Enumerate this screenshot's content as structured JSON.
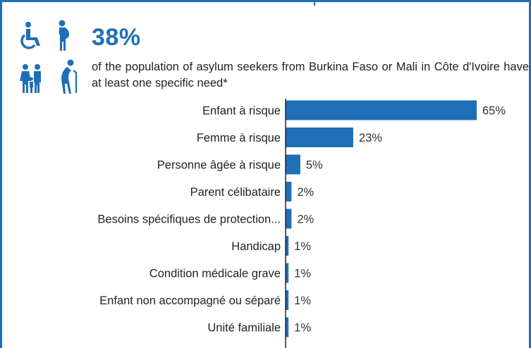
{
  "colors": {
    "accent": "#1f6fb7",
    "text": "#222222",
    "value_text": "#333333"
  },
  "icons": [
    "wheelchair-icon",
    "pregnant-woman-icon",
    "family-icon",
    "elderly-person-icon"
  ],
  "stat": {
    "value": "38%",
    "description": "of the population of asylum seekers from Burkina Faso or Mali in Côte d'Ivoire have at least one specific need*"
  },
  "chart_data": {
    "type": "bar",
    "orientation": "horizontal",
    "categories": [
      "Enfant à risque",
      "Femme à risque",
      "Personne âgée à risque",
      "Parent célibataire",
      "Besoins spécifiques de protection...",
      "Handicap",
      "Condition médicale grave",
      "Enfant non accompagné ou séparé",
      "Unité familiale"
    ],
    "values": [
      65,
      23,
      5,
      2,
      2,
      1,
      1,
      1,
      1
    ],
    "value_labels": [
      "65%",
      "23%",
      "5%",
      "2%",
      "2%",
      "1%",
      "1%",
      "1%",
      "1%"
    ],
    "xlim": [
      0,
      65
    ],
    "grid": false,
    "legend": "none"
  }
}
